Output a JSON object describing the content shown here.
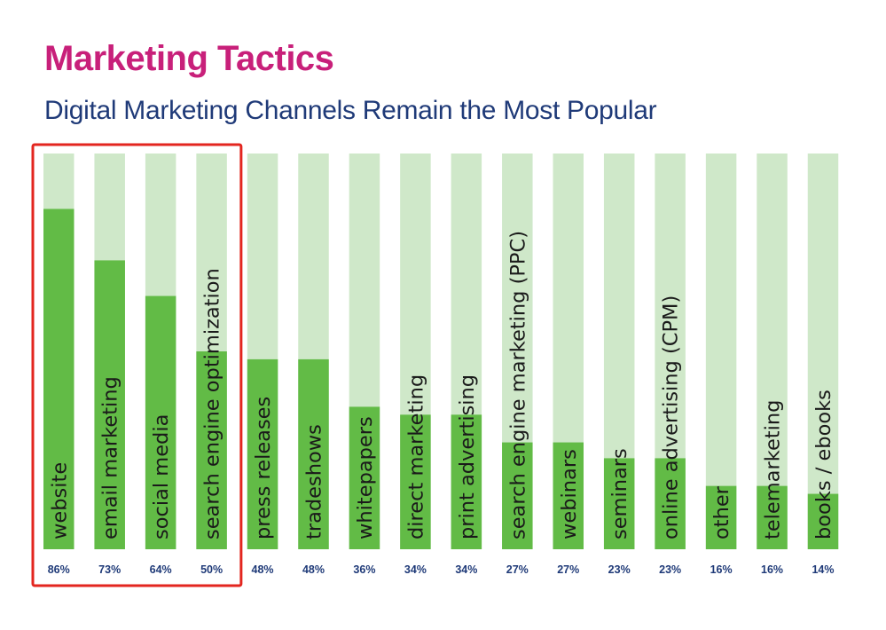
{
  "colors": {
    "title": "#c8207a",
    "subtitle": "#1f3a78",
    "bar_background": "#cfe8c9",
    "bar_fill": "#62bb46",
    "label_text": "#1a1a1a",
    "value_text": "#1f3a78",
    "highlight_box": "#e3261f"
  },
  "chart_data": {
    "type": "bar",
    "title": "Marketing Tactics",
    "subtitle": "Digital Marketing Channels Remain the Most Popular",
    "categories": [
      "website",
      "email marketing",
      "social media",
      "search engine optimization",
      "press releases",
      "tradeshows",
      "whitepapers",
      "direct marketing",
      "print advertising",
      "search engine marketing (PPC)",
      "webinars",
      "seminars",
      "online advertising (CPM)",
      "other",
      "telemarketing",
      "books / ebooks"
    ],
    "values": [
      86,
      73,
      64,
      50,
      48,
      48,
      36,
      34,
      34,
      27,
      27,
      23,
      23,
      16,
      16,
      14
    ],
    "value_labels": [
      "86%",
      "73%",
      "64%",
      "50%",
      "48%",
      "48%",
      "36%",
      "34%",
      "34%",
      "27%",
      "27%",
      "23%",
      "23%",
      "16%",
      "16%",
      "14%"
    ],
    "ylim": [
      0,
      100
    ],
    "orientation": "vertical",
    "category_labels_inside_bars": true,
    "highlighted_categories": [
      "website",
      "email marketing",
      "social media",
      "search engine optimization"
    ],
    "grid": false,
    "legend": "none"
  }
}
